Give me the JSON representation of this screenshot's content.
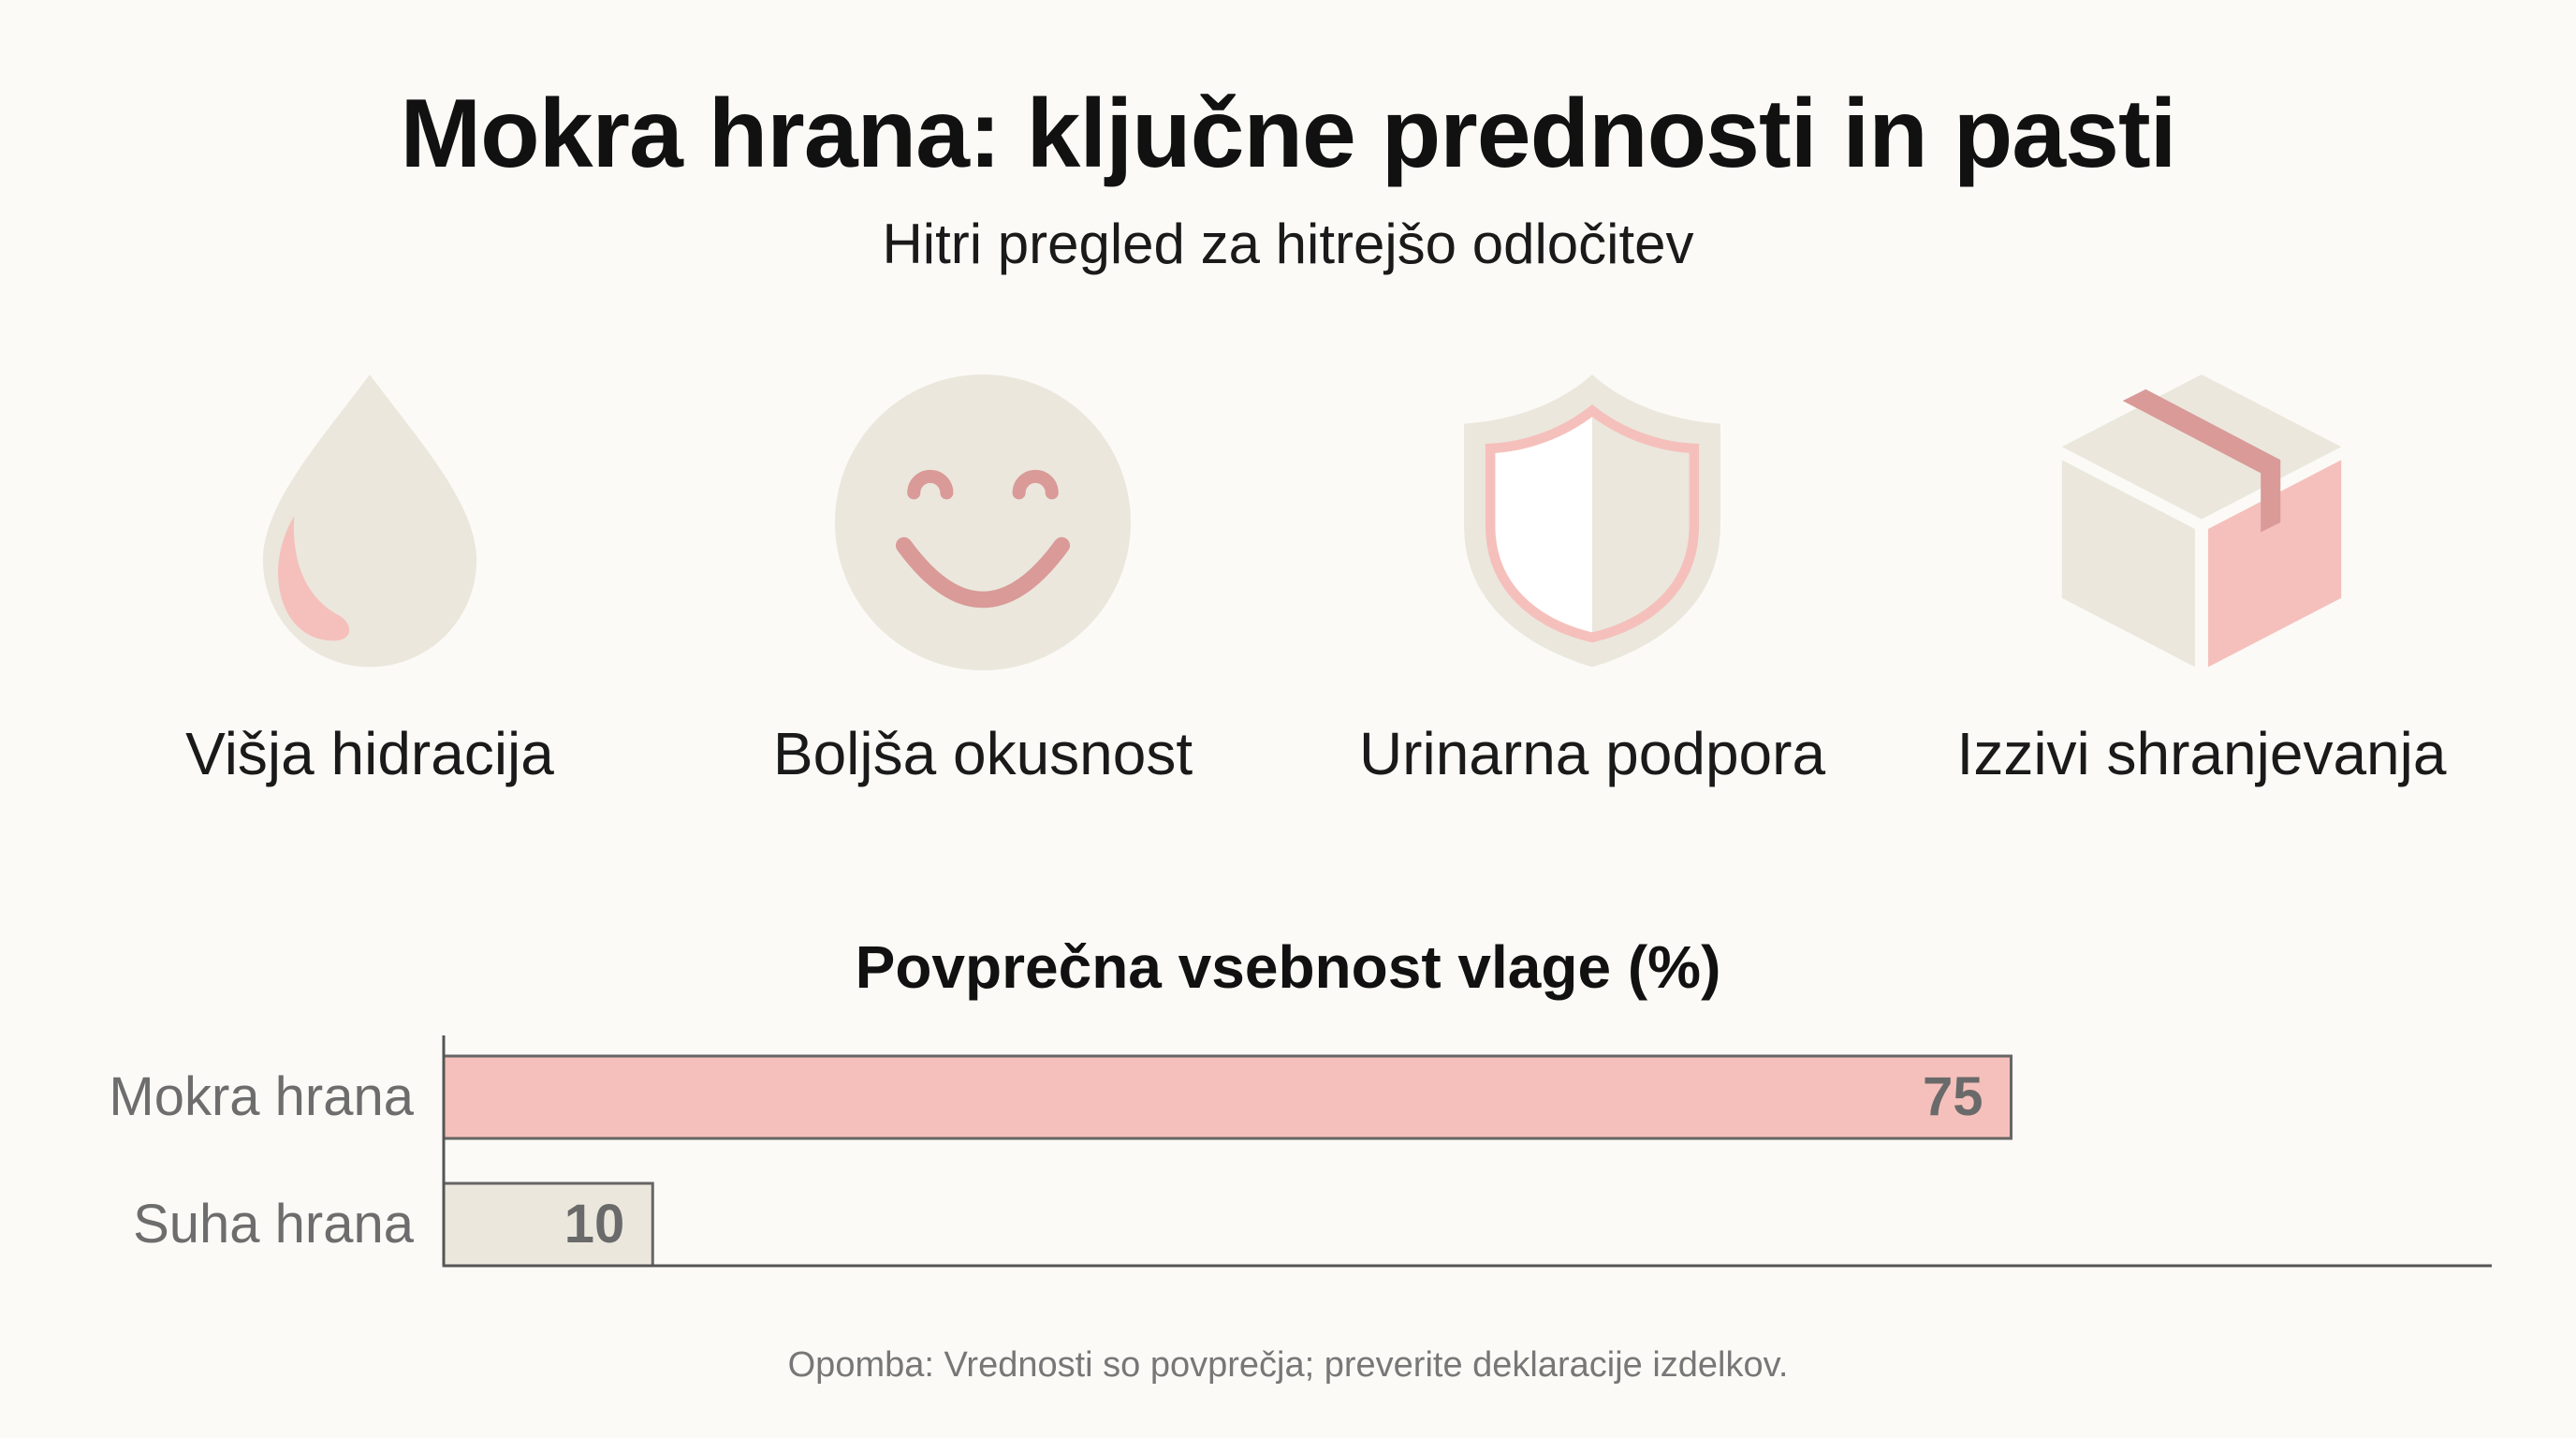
{
  "header": {
    "title": "Mokra hrana: ključne prednosti in pasti",
    "subtitle": "Hitri pregled za hitrejšo odločitev"
  },
  "features": [
    {
      "label": "Višja hidracija",
      "icon": "water-drop-icon"
    },
    {
      "label": "Boljša okusnost",
      "icon": "smiley-face-icon"
    },
    {
      "label": "Urinarna podpora",
      "icon": "shield-icon"
    },
    {
      "label": "Izzivi shranjevanja",
      "icon": "box-icon"
    }
  ],
  "colors": {
    "background": "#fbfaf6",
    "icon_beige": "#ebe7dd",
    "accent_pink": "#f5c0bb",
    "accent_dark_pink": "#d99a98",
    "bar_wet": "#f5c0bb",
    "bar_dry": "#ebe7dd"
  },
  "chart_data": {
    "type": "bar",
    "orientation": "horizontal",
    "title": "Povprečna vsebnost vlage (%)",
    "categories": [
      "Mokra hrana",
      "Suha hrana"
    ],
    "values": [
      75,
      10
    ],
    "value_labels": [
      "75",
      "10"
    ],
    "xlim": [
      0,
      98
    ],
    "grid": false
  },
  "footnote": "Opomba: Vrednosti so povprečja; preverite deklaracije izdelkov."
}
